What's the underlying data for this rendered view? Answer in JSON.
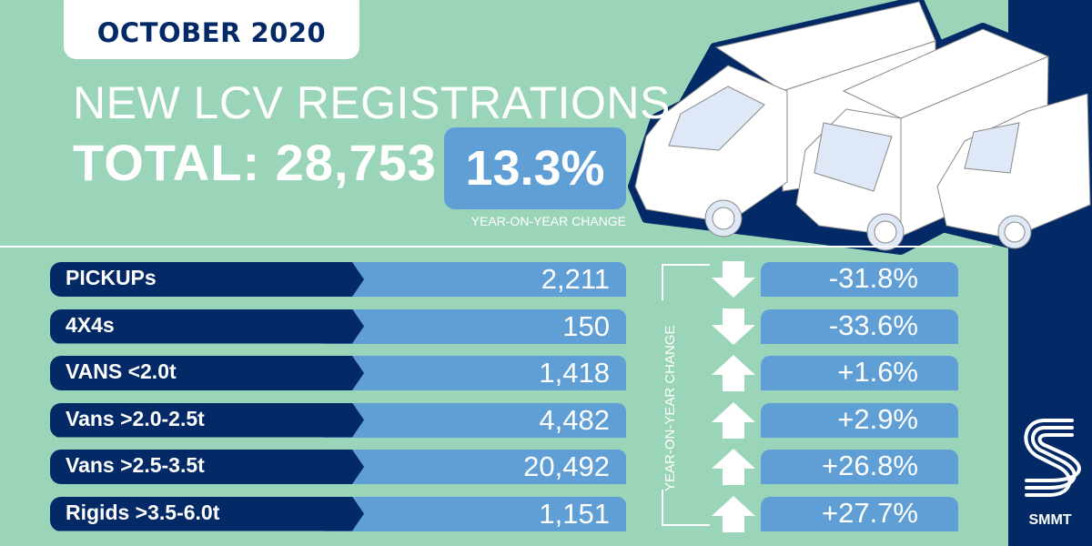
{
  "header": {
    "date": "OCTOBER 2020",
    "title": "NEW LCV REGISTRATIONS",
    "total": "TOTAL: 28,753",
    "yoy_change": "13.3%",
    "yoy_label": "YEAR-ON-YEAR CHANGE"
  },
  "side_label": "YEAR-ON-YEAR CHANGE",
  "rows": [
    {
      "label": "PICKUPs",
      "value": "2,211",
      "change": "-31.8%",
      "direction": "down"
    },
    {
      "label": "4X4s",
      "value": "150",
      "change": "-33.6%",
      "direction": "down"
    },
    {
      "label": "VANS <2.0t",
      "value": "1,418",
      "change": "+1.6%",
      "direction": "up"
    },
    {
      "label": "Vans >2.0-2.5t",
      "value": "4,482",
      "change": "+2.9%",
      "direction": "up"
    },
    {
      "label": "Vans >2.5-3.5t",
      "value": "20,492",
      "change": "+26.8%",
      "direction": "up"
    },
    {
      "label": "Rigids >3.5-6.0t",
      "value": "1,151",
      "change": "+27.7%",
      "direction": "up"
    }
  ],
  "brand": {
    "name": "SMMT"
  },
  "colors": {
    "background": "#9bd5b9",
    "navy": "#032a66",
    "blue": "#5f9fd6"
  }
}
